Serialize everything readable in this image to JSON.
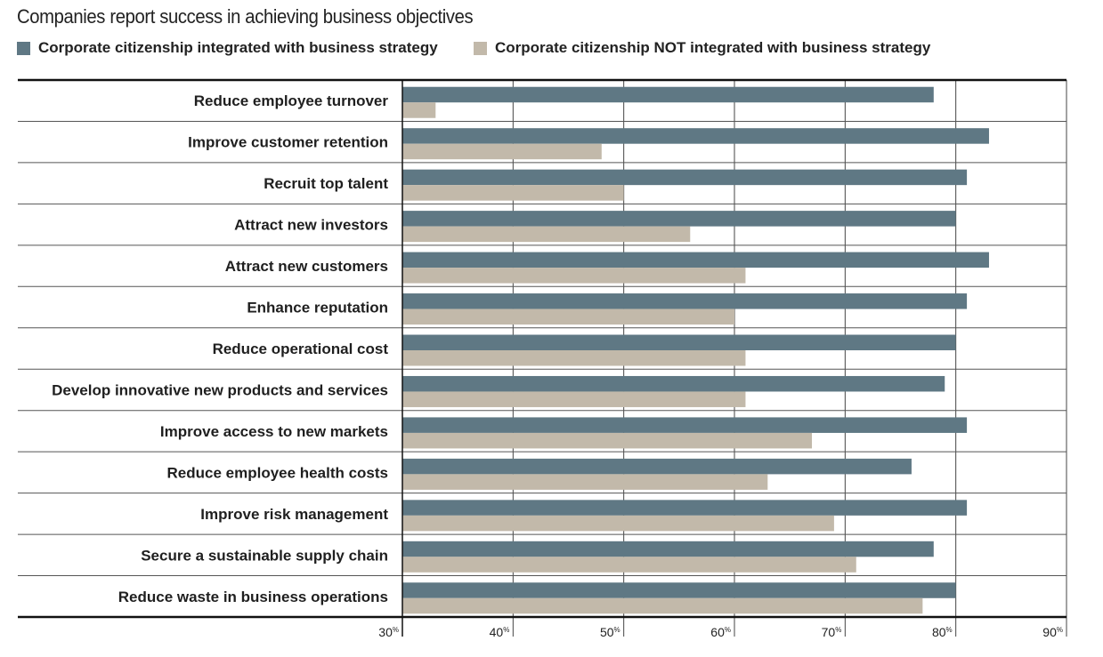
{
  "chart_data": {
    "type": "bar",
    "orientation": "horizontal",
    "title": "Companies report success in achieving business objectives",
    "categories": [
      "Reduce employee turnover",
      "Improve customer retention",
      "Recruit top talent",
      "Attract new investors",
      "Attract new customers",
      "Enhance reputation",
      "Reduce operational cost",
      "Develop innovative new products and services",
      "Improve access to new markets",
      "Reduce employee health costs",
      "Improve risk management",
      "Secure a sustainable supply chain",
      "Reduce waste in business operations"
    ],
    "series": [
      {
        "name": "Corporate citizenship integrated with business strategy",
        "color": "#5f7884",
        "values": [
          78,
          83,
          81,
          80,
          83,
          81,
          80,
          79,
          81,
          76,
          81,
          78,
          80
        ]
      },
      {
        "name": "Corporate citizenship NOT integrated with business strategy",
        "color": "#c2b9aa",
        "values": [
          33,
          48,
          50,
          56,
          61,
          60,
          61,
          61,
          67,
          63,
          69,
          71,
          77
        ]
      }
    ],
    "xlim": [
      30,
      90
    ],
    "ticks": [
      {
        "value": 30,
        "label": "30%"
      },
      {
        "value": 40,
        "label": "40%"
      },
      {
        "value": 50,
        "label": "50%"
      },
      {
        "value": 60,
        "label": "60%"
      },
      {
        "value": 70,
        "label": "70%"
      },
      {
        "value": 80,
        "label": "80%"
      },
      {
        "value": 90,
        "label": "90%"
      }
    ],
    "grid": true,
    "legend": "top-left"
  }
}
